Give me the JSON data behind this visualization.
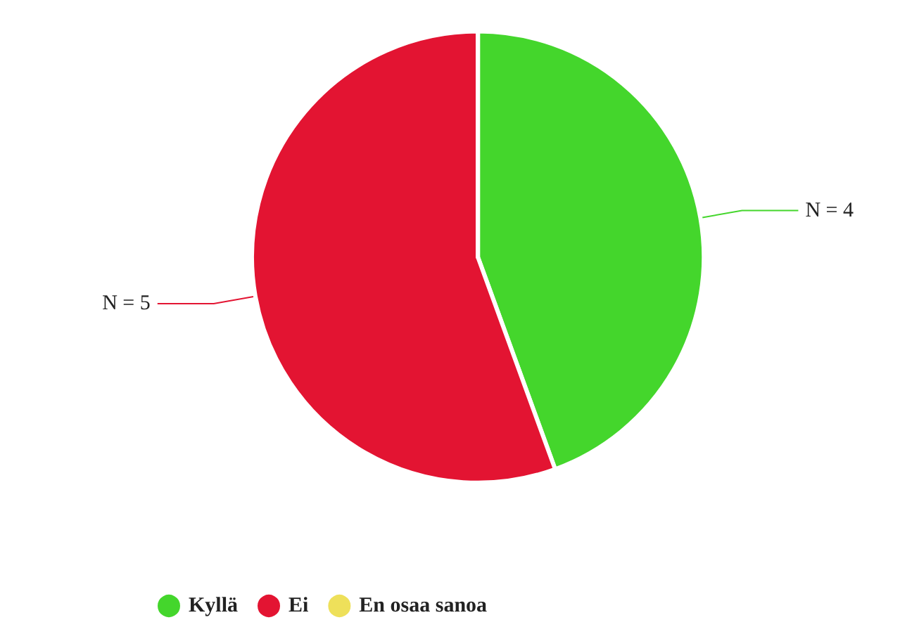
{
  "chart_data": {
    "type": "pie",
    "categories": [
      "Kyllä",
      "Ei",
      "En osaa sanoa"
    ],
    "values": [
      4,
      5,
      0
    ],
    "colors": [
      "#44d62c",
      "#e31432",
      "#eee05a"
    ],
    "value_labels": [
      "N = 4",
      "N = 5",
      null
    ],
    "legend": "bottom left"
  }
}
